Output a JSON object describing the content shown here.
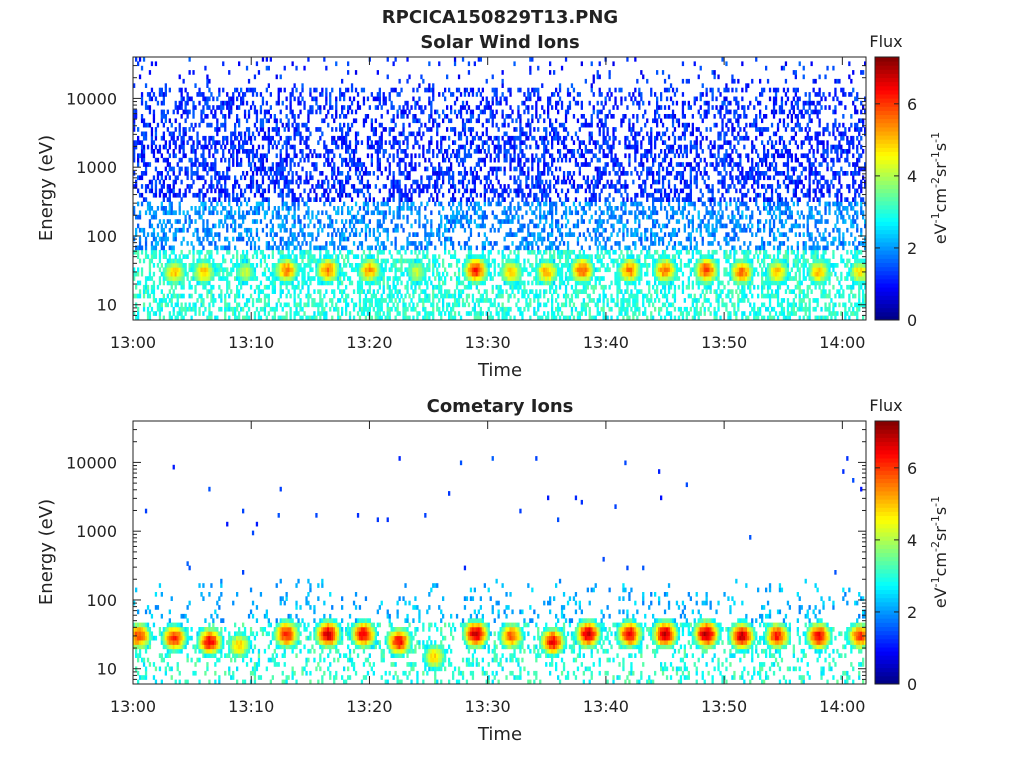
{
  "page_title": "RPCICA150829T13.PNG",
  "chart_data": [
    {
      "type": "heatmap",
      "title": "Solar Wind Ions",
      "xlabel": "Time",
      "ylabel": "Energy (eV)",
      "x_range": [
        "13:00",
        "14:02"
      ],
      "x_ticks": [
        "13:00",
        "13:10",
        "13:20",
        "13:30",
        "13:40",
        "13:50",
        "14:00"
      ],
      "y_scale": "log",
      "y_range": [
        6,
        40000
      ],
      "y_ticks": [
        "10",
        "100",
        "1000",
        "10000"
      ],
      "colorbar": {
        "label": "Flux",
        "unit": "eV-1cm-2sr-1s-1",
        "range": [
          0,
          7.3
        ],
        "ticks": [
          "0",
          "2",
          "4",
          "6"
        ],
        "colormap": "jet"
      },
      "grid": false,
      "description_of_values": {
        "background_flux_log10_approx": [
          0.8,
          2.0
        ],
        "high_energy_background_eV": [
          100,
          40000
        ],
        "low_energy_band_eV": [
          6,
          60
        ],
        "low_energy_band_flux": 3.0,
        "bursts": [
          {
            "time": "13:03.5",
            "peak_eV": 30,
            "flux": 5.0
          },
          {
            "time": "13:06",
            "peak_eV": 30,
            "flux": 5.0
          },
          {
            "time": "13:09.5",
            "peak_eV": 30,
            "flux": 4.2
          },
          {
            "time": "13:13",
            "peak_eV": 32,
            "flux": 5.5
          },
          {
            "time": "13:16.5",
            "peak_eV": 32,
            "flux": 5.5
          },
          {
            "time": "13:20",
            "peak_eV": 32,
            "flux": 5.3
          },
          {
            "time": "13:24",
            "peak_eV": 30,
            "flux": 4.2
          },
          {
            "time": "13:29",
            "peak_eV": 32,
            "flux": 6.2
          },
          {
            "time": "13:32",
            "peak_eV": 30,
            "flux": 5.0
          },
          {
            "time": "13:35",
            "peak_eV": 30,
            "flux": 5.2
          },
          {
            "time": "13:38",
            "peak_eV": 32,
            "flux": 5.8
          },
          {
            "time": "13:42",
            "peak_eV": 32,
            "flux": 5.5
          },
          {
            "time": "13:45",
            "peak_eV": 32,
            "flux": 5.6
          },
          {
            "time": "13:48.5",
            "peak_eV": 32,
            "flux": 6.0
          },
          {
            "time": "13:51.5",
            "peak_eV": 30,
            "flux": 5.6
          },
          {
            "time": "13:54.5",
            "peak_eV": 30,
            "flux": 5.0
          },
          {
            "time": "13:58",
            "peak_eV": 30,
            "flux": 5.0
          },
          {
            "time": "14:01.5",
            "peak_eV": 30,
            "flux": 4.8
          }
        ]
      }
    },
    {
      "type": "heatmap",
      "title": "Cometary Ions",
      "xlabel": "Time",
      "ylabel": "Energy (eV)",
      "x_range": [
        "13:00",
        "14:02"
      ],
      "x_ticks": [
        "13:00",
        "13:10",
        "13:20",
        "13:30",
        "13:40",
        "13:50",
        "14:00"
      ],
      "y_scale": "log",
      "y_range": [
        6,
        40000
      ],
      "y_ticks": [
        "10",
        "100",
        "1000",
        "10000"
      ],
      "colorbar": {
        "label": "Flux",
        "unit": "eV-1cm-2sr-1s-1",
        "range": [
          0,
          7.3
        ],
        "ticks": [
          "0",
          "2",
          "4",
          "6"
        ],
        "colormap": "jet"
      },
      "grid": false,
      "description_of_values": {
        "sparse_high_energy_points_eV": [
          300,
          11000
        ],
        "low_energy_band_eV": [
          6,
          200
        ],
        "low_energy_band_flux": 3.0,
        "bursts": [
          {
            "time": "13:00.5",
            "peak_eV": 30,
            "flux": 6.0
          },
          {
            "time": "13:03.5",
            "peak_eV": 28,
            "flux": 6.2
          },
          {
            "time": "13:06.5",
            "peak_eV": 25,
            "flux": 6.5
          },
          {
            "time": "13:09",
            "peak_eV": 22,
            "flux": 5.0
          },
          {
            "time": "13:13",
            "peak_eV": 32,
            "flux": 6.3
          },
          {
            "time": "13:16.5",
            "peak_eV": 32,
            "flux": 6.8
          },
          {
            "time": "13:19.5",
            "peak_eV": 32,
            "flux": 6.5
          },
          {
            "time": "13:22.5",
            "peak_eV": 25,
            "flux": 6.4
          },
          {
            "time": "13:25.5",
            "peak_eV": 15,
            "flux": 5.0
          },
          {
            "time": "13:29",
            "peak_eV": 32,
            "flux": 6.8
          },
          {
            "time": "13:32",
            "peak_eV": 30,
            "flux": 5.8
          },
          {
            "time": "13:35.5",
            "peak_eV": 25,
            "flux": 6.5
          },
          {
            "time": "13:38.5",
            "peak_eV": 32,
            "flux": 6.8
          },
          {
            "time": "13:42",
            "peak_eV": 32,
            "flux": 6.5
          },
          {
            "time": "13:45",
            "peak_eV": 32,
            "flux": 6.8
          },
          {
            "time": "13:48.5",
            "peak_eV": 32,
            "flux": 7.0
          },
          {
            "time": "13:51.5",
            "peak_eV": 30,
            "flux": 6.8
          },
          {
            "time": "13:54.5",
            "peak_eV": 30,
            "flux": 6.2
          },
          {
            "time": "13:58",
            "peak_eV": 30,
            "flux": 6.5
          },
          {
            "time": "14:01.5",
            "peak_eV": 30,
            "flux": 6.0
          }
        ]
      }
    }
  ]
}
